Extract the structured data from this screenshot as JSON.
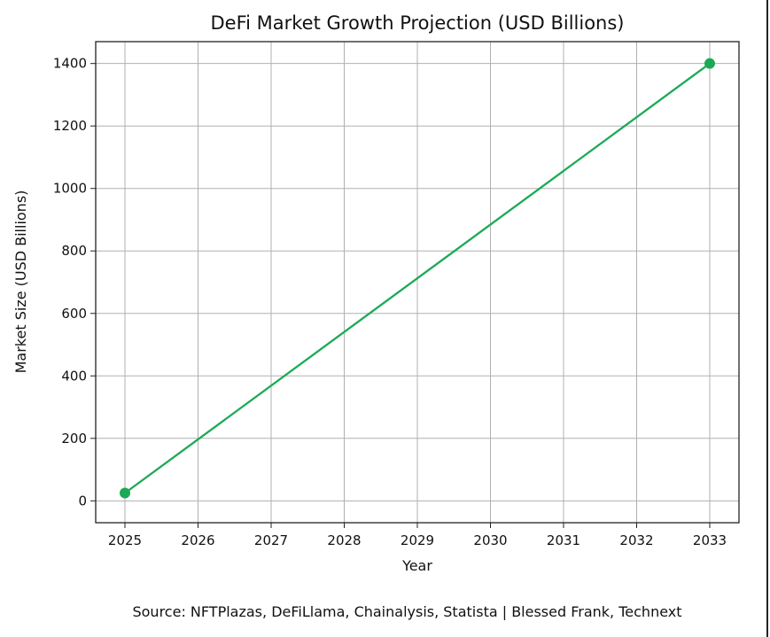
{
  "chart_data": {
    "type": "line",
    "title": "DeFi Market Growth Projection (USD Billions)",
    "xlabel": "Year",
    "ylabel": "Market Size (USD Billions)",
    "x": [
      2025,
      2033
    ],
    "series": [
      {
        "values": [
          25,
          1400
        ],
        "color": "#1aaa55",
        "marker": "circle"
      }
    ],
    "xticks": [
      "2025",
      "2026",
      "2027",
      "2028",
      "2029",
      "2030",
      "2031",
      "2032",
      "2033"
    ],
    "yticks": [
      "0",
      "200",
      "400",
      "600",
      "800",
      "1000",
      "1200",
      "1400"
    ],
    "xlim": [
      2024.6,
      2033.4
    ],
    "ylim": [
      -70,
      1470
    ],
    "grid": true
  },
  "source": "Source: NFTPlazas, DeFiLlama, Chainalysis, Statista | Blessed Frank, Technext"
}
